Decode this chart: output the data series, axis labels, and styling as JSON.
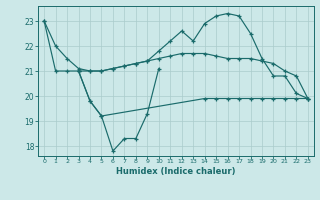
{
  "background_color": "#cce8e8",
  "grid_color": "#aacccc",
  "line_color": "#1a6b6b",
  "xlabel": "Humidex (Indice chaleur)",
  "xlim": [
    -0.5,
    23.5
  ],
  "ylim": [
    17.6,
    23.6
  ],
  "yticks": [
    18,
    19,
    20,
    21,
    22,
    23
  ],
  "xticks": [
    0,
    1,
    2,
    3,
    4,
    5,
    6,
    7,
    8,
    9,
    10,
    11,
    12,
    13,
    14,
    15,
    16,
    17,
    18,
    19,
    20,
    21,
    22,
    23
  ],
  "line1_x": [
    0,
    1,
    2,
    3,
    4,
    5,
    6,
    7,
    8,
    9,
    10,
    11,
    12,
    13,
    14,
    15,
    16,
    17,
    18,
    19,
    20,
    21,
    22,
    23
  ],
  "line1_y": [
    23.0,
    22.0,
    21.5,
    21.1,
    21.0,
    21.0,
    21.1,
    21.2,
    21.3,
    21.4,
    21.5,
    21.6,
    21.7,
    21.7,
    21.7,
    21.6,
    21.5,
    21.5,
    21.5,
    21.4,
    21.3,
    21.0,
    20.8,
    19.9
  ],
  "line2_x": [
    0,
    1,
    2,
    3,
    4,
    5,
    6,
    7,
    8,
    9,
    10,
    11,
    12,
    13,
    14,
    15,
    16,
    17,
    18,
    19,
    20,
    21,
    22,
    23
  ],
  "line2_y": [
    23.0,
    21.0,
    21.0,
    21.0,
    21.0,
    21.0,
    21.1,
    21.2,
    21.3,
    21.4,
    21.8,
    22.2,
    22.6,
    22.2,
    22.9,
    23.2,
    23.3,
    23.2,
    22.5,
    21.5,
    20.8,
    20.8,
    20.1,
    19.9
  ],
  "line3_x": [
    3,
    4,
    5,
    6,
    7,
    8,
    9,
    10
  ],
  "line3_y": [
    21.0,
    19.8,
    19.2,
    17.8,
    18.3,
    18.3,
    19.3,
    21.1
  ],
  "line4_x": [
    3,
    4,
    5,
    14,
    15,
    16,
    17,
    18,
    19,
    20,
    21,
    22,
    23
  ],
  "line4_y": [
    21.0,
    19.8,
    19.2,
    19.9,
    19.9,
    19.9,
    19.9,
    19.9,
    19.9,
    19.9,
    19.9,
    19.9,
    19.9
  ]
}
